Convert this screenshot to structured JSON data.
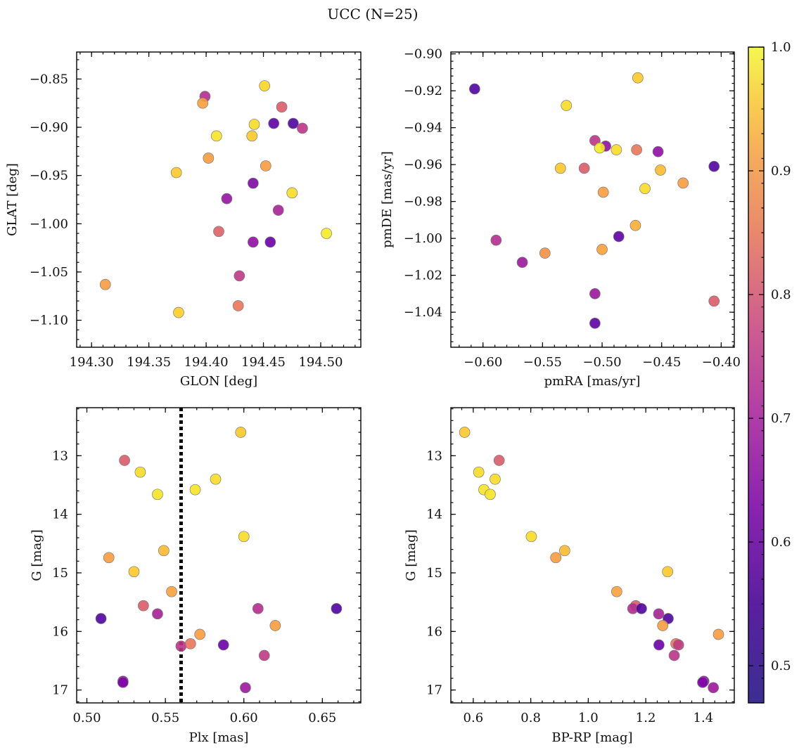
{
  "title": "UCC (N=25)",
  "colorbar": {
    "range": [
      0.47,
      1.0
    ],
    "ticks": [
      0.5,
      0.6,
      0.7,
      0.8,
      0.9,
      1.0
    ],
    "tick_labels": [
      "0.5",
      "0.6",
      "0.7",
      "0.8",
      "0.9",
      "1.0"
    ],
    "colormap": "plasma"
  },
  "reference_line": {
    "panel": 2,
    "axis": "x",
    "value": 0.56,
    "style": "dotted",
    "color": "#000000"
  },
  "chart_data": [
    {
      "type": "scatter",
      "xlabel": "GLON [deg]",
      "ylabel": "GLAT [deg]",
      "xlim": [
        194.287,
        194.535
      ],
      "ylim": [
        -1.128,
        -0.822
      ],
      "x_ticks": [
        194.3,
        194.35,
        194.4,
        194.45,
        194.5
      ],
      "x_tick_labels": [
        "194.30",
        "194.35",
        "194.40",
        "194.45",
        "194.50"
      ],
      "y_ticks": [
        -1.1,
        -1.05,
        -1.0,
        -0.95,
        -0.9,
        -0.85
      ],
      "y_tick_labels": [
        "−1.10",
        "−1.05",
        "−1.00",
        "−0.95",
        "−0.90",
        "−0.85"
      ],
      "y_inverted": false,
      "x": [
        194.451,
        194.399,
        194.397,
        194.466,
        194.459,
        194.476,
        194.484,
        194.442,
        194.409,
        194.44,
        194.402,
        194.452,
        194.374,
        194.441,
        194.475,
        194.418,
        194.463,
        194.411,
        194.505,
        194.441,
        194.456,
        194.429,
        194.312,
        194.428,
        194.376
      ],
      "y": [
        -0.857,
        -0.868,
        -0.875,
        -0.879,
        -0.896,
        -0.896,
        -0.901,
        -0.897,
        -0.909,
        -0.909,
        -0.932,
        -0.94,
        -0.947,
        -0.958,
        -0.968,
        -0.974,
        -0.986,
        -1.008,
        -1.01,
        -1.019,
        -1.019,
        -1.054,
        -1.063,
        -1.085,
        -1.092
      ],
      "color_values": [
        0.95,
        0.64,
        0.87,
        0.74,
        0.5,
        0.48,
        0.66,
        0.96,
        0.97,
        0.93,
        0.86,
        0.86,
        0.93,
        0.55,
        0.96,
        0.59,
        0.62,
        0.75,
        0.98,
        0.58,
        0.52,
        0.67,
        0.86,
        0.79,
        0.94
      ]
    },
    {
      "type": "scatter",
      "xlabel": "pmRA [mas/yr]",
      "ylabel": "pmDE [mas/yr]",
      "xlim": [
        -0.627,
        -0.389
      ],
      "ylim": [
        -1.059,
        -0.899
      ],
      "x_ticks": [
        -0.6,
        -0.55,
        -0.5,
        -0.45,
        -0.4
      ],
      "x_tick_labels": [
        "−0.60",
        "−0.55",
        "−0.50",
        "−0.45",
        "−0.40"
      ],
      "y_ticks": [
        -1.04,
        -1.02,
        -1.0,
        -0.98,
        -0.96,
        -0.94,
        -0.92,
        -0.9
      ],
      "y_tick_labels": [
        "−1.04",
        "−1.02",
        "−1.00",
        "−0.98",
        "−0.96",
        "−0.94",
        "−0.92",
        "−0.90"
      ],
      "y_inverted": false,
      "x": [
        -0.47,
        -0.607,
        -0.53,
        -0.506,
        -0.497,
        -0.502,
        -0.488,
        -0.471,
        -0.453,
        -0.535,
        -0.515,
        -0.451,
        -0.406,
        -0.464,
        -0.499,
        -0.432,
        -0.472,
        -0.486,
        -0.589,
        -0.5,
        -0.548,
        -0.567,
        -0.506,
        -0.406,
        -0.506
      ],
      "y": [
        -0.913,
        -0.919,
        -0.928,
        -0.947,
        -0.95,
        -0.951,
        -0.952,
        -0.952,
        -0.953,
        -0.962,
        -0.962,
        -0.963,
        -0.961,
        -0.973,
        -0.975,
        -0.97,
        -0.993,
        -0.999,
        -1.001,
        -1.006,
        -1.008,
        -1.013,
        -1.03,
        -1.034,
        -1.046
      ],
      "color_values": [
        0.93,
        0.48,
        0.96,
        0.66,
        0.58,
        0.98,
        0.96,
        0.79,
        0.58,
        0.93,
        0.74,
        0.91,
        0.48,
        0.96,
        0.86,
        0.86,
        0.89,
        0.5,
        0.64,
        0.87,
        0.84,
        0.6,
        0.6,
        0.74,
        0.5
      ]
    },
    {
      "type": "scatter",
      "xlabel": "Plx [mas]",
      "ylabel": "G [mag]",
      "xlim": [
        0.4935,
        0.6745
      ],
      "ylim": [
        17.22,
        12.18
      ],
      "x_ticks": [
        0.5,
        0.55,
        0.6,
        0.65
      ],
      "x_tick_labels": [
        "0.50",
        "0.55",
        "0.60",
        "0.65"
      ],
      "y_ticks": [
        13,
        14,
        15,
        16,
        17
      ],
      "y_tick_labels": [
        "13",
        "14",
        "15",
        "16",
        "17"
      ],
      "y_inverted": true,
      "x": [
        0.598,
        0.524,
        0.534,
        0.582,
        0.569,
        0.545,
        0.6,
        0.549,
        0.514,
        0.53,
        0.554,
        0.536,
        0.545,
        0.509,
        0.609,
        0.659,
        0.62,
        0.572,
        0.56,
        0.566,
        0.587,
        0.613,
        0.523,
        0.523,
        0.601
      ],
      "y": [
        12.6,
        13.08,
        13.28,
        13.4,
        13.58,
        13.66,
        14.38,
        14.62,
        14.74,
        14.98,
        15.32,
        15.56,
        15.7,
        15.78,
        15.61,
        15.61,
        15.9,
        16.05,
        16.25,
        16.21,
        16.23,
        16.41,
        16.85,
        16.87,
        16.96
      ],
      "color_values": [
        0.93,
        0.74,
        0.96,
        0.96,
        0.97,
        0.97,
        0.96,
        0.91,
        0.86,
        0.93,
        0.87,
        0.74,
        0.62,
        0.48,
        0.64,
        0.48,
        0.86,
        0.86,
        0.66,
        0.79,
        0.52,
        0.67,
        0.58,
        0.55,
        0.6
      ]
    },
    {
      "type": "scatter",
      "xlabel": "BP-RP [mag]",
      "ylabel": "G [mag]",
      "xlim": [
        0.522,
        1.508
      ],
      "ylim": [
        17.22,
        12.18
      ],
      "x_ticks": [
        0.6,
        0.8,
        1.0,
        1.2,
        1.4
      ],
      "x_tick_labels": [
        "0.6",
        "0.8",
        "1.0",
        "1.2",
        "1.4"
      ],
      "y_ticks": [
        13,
        14,
        15,
        16,
        17
      ],
      "y_tick_labels": [
        "13",
        "14",
        "15",
        "16",
        "17"
      ],
      "y_inverted": true,
      "x": [
        0.57,
        0.69,
        0.619,
        0.676,
        0.637,
        0.659,
        0.802,
        0.918,
        0.887,
        1.276,
        1.099,
        1.165,
        1.155,
        1.245,
        1.185,
        1.278,
        1.259,
        1.453,
        1.305,
        1.314,
        1.246,
        1.299,
        1.402,
        1.398,
        1.435
      ],
      "y": [
        12.6,
        13.08,
        13.28,
        13.4,
        13.58,
        13.66,
        14.38,
        14.62,
        14.74,
        14.98,
        15.32,
        15.56,
        15.61,
        15.7,
        15.61,
        15.78,
        15.9,
        16.05,
        16.21,
        16.23,
        16.23,
        16.41,
        16.85,
        16.87,
        16.96
      ],
      "color_values": [
        0.93,
        0.74,
        0.96,
        0.96,
        0.97,
        0.97,
        0.96,
        0.91,
        0.86,
        0.93,
        0.87,
        0.74,
        0.64,
        0.62,
        0.48,
        0.48,
        0.86,
        0.86,
        0.79,
        0.67,
        0.52,
        0.66,
        0.58,
        0.55,
        0.6
      ]
    }
  ]
}
